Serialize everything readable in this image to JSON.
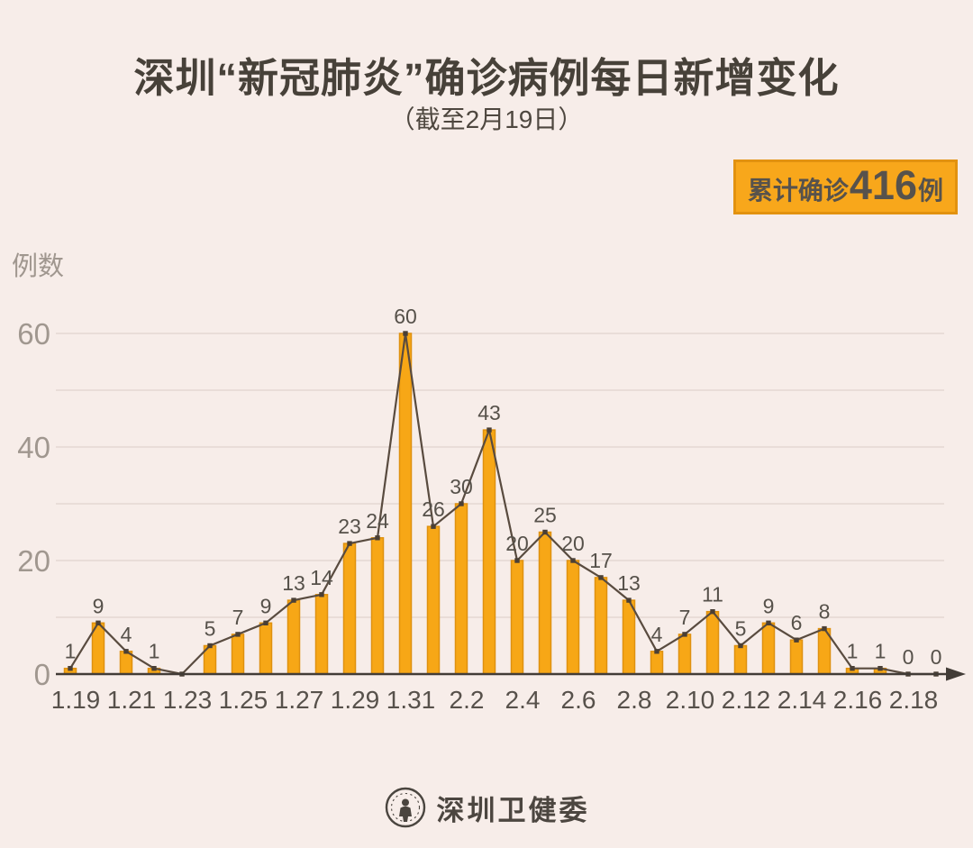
{
  "title": "深圳“新冠肺炎”确诊病例每日新增变化",
  "subtitle": "（截至2月19日）",
  "badge": {
    "label": "累计确诊",
    "value": "416",
    "unit": "例"
  },
  "y_axis_label": "例数",
  "footer": {
    "org_name": "深圳卫健委",
    "logo": "shenzhen-health-commission-emblem"
  },
  "colors": {
    "background": "#f7ede9",
    "bar_fill": "#f7a716",
    "bar_stroke": "#df9110",
    "line": "#594b3f",
    "marker": "#4a3f35",
    "grid": "#e9ddd8",
    "axis": "#423c37",
    "y_tick_text": "#a0978f",
    "x_tick_text": "#57514b",
    "value_label_text": "#56514a",
    "badge_bg": "#f8a71b",
    "badge_border": "#e29210"
  },
  "chart_data": {
    "type": "bar+line",
    "title": "深圳“新冠肺炎”确诊病例每日新增变化",
    "subtitle": "（截至2月19日）",
    "ylabel": "例数",
    "xlabel": "",
    "categories": [
      "1.19",
      "1.20",
      "1.21",
      "1.22",
      "1.23",
      "1.24",
      "1.25",
      "1.26",
      "1.27",
      "1.28",
      "1.29",
      "1.30",
      "1.31",
      "2.1",
      "2.2",
      "2.3",
      "2.4",
      "2.5",
      "2.6",
      "2.7",
      "2.8",
      "2.9",
      "2.10",
      "2.11",
      "2.12",
      "2.13",
      "2.14",
      "2.15",
      "2.16",
      "2.17",
      "2.18",
      "2.19"
    ],
    "values": [
      1,
      9,
      4,
      1,
      0,
      5,
      7,
      9,
      13,
      14,
      23,
      24,
      60,
      26,
      30,
      43,
      20,
      25,
      20,
      17,
      13,
      4,
      7,
      11,
      5,
      9,
      6,
      8,
      1,
      1,
      0,
      0
    ],
    "cumulative_total": 416,
    "x_tick_labels": [
      "1.19",
      "1.21",
      "1.23",
      "1.25",
      "1.27",
      "1.29",
      "1.31",
      "2.2",
      "2.4",
      "2.6",
      "2.8",
      "2.10",
      "2.12",
      "2.14",
      "2.16",
      "2.18"
    ],
    "hidden_value_labels": [
      "1.23"
    ],
    "y_ticks": [
      0,
      20,
      40,
      60
    ],
    "grid_interval": 10,
    "ylim": [
      0,
      63
    ],
    "grid": true,
    "legend": false
  }
}
